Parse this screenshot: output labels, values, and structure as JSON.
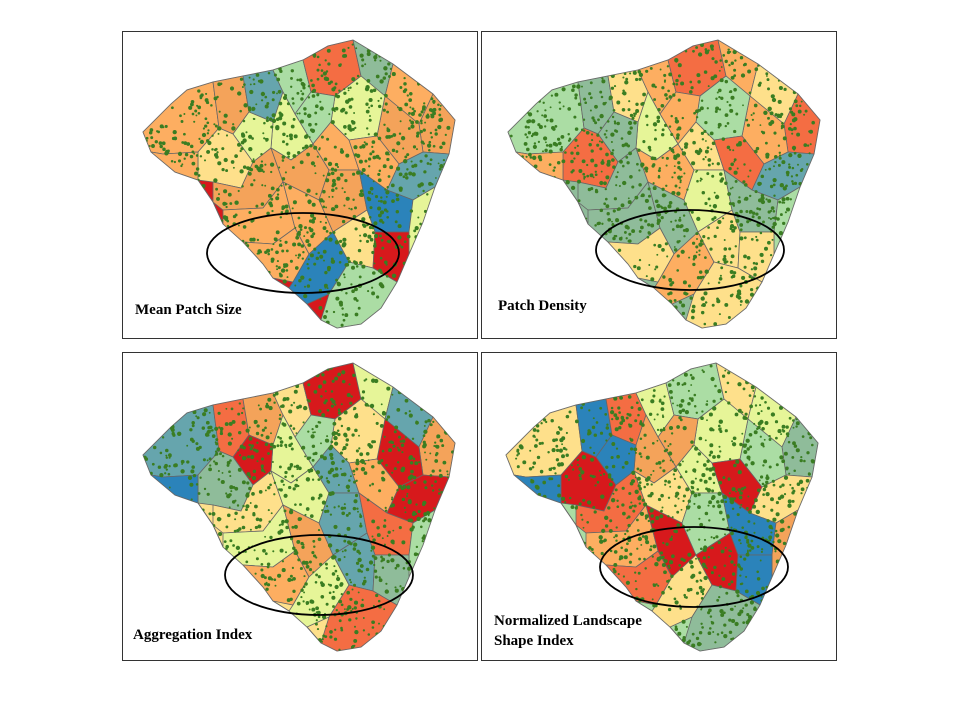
{
  "panels": [
    {
      "id": "mean-patch-size",
      "title": "Mean Patch Size",
      "colors": [
        "#d7191c",
        "#f46d43",
        "#fdae61",
        "#fee08b",
        "#e6f598",
        "#abdda4",
        "#66a5ad",
        "#2b83ba",
        "#8fbc9a",
        "#f4a35a"
      ]
    },
    {
      "id": "patch-density",
      "title": "Patch Density",
      "colors": [
        "#8fbc9a",
        "#66a5ad",
        "#abdda4",
        "#fdae61",
        "#f46d43",
        "#2b83ba",
        "#e6f598",
        "#d7191c",
        "#fee08b",
        "#66a5ad"
      ]
    },
    {
      "id": "aggregation-index",
      "title": "Aggregation Index",
      "colors": [
        "#fee08b",
        "#abdda4",
        "#f46d43",
        "#66a5ad",
        "#2b83ba",
        "#fdae61",
        "#8fbc9a",
        "#d7191c",
        "#e6f598",
        "#f4a35a"
      ]
    },
    {
      "id": "normalized-landscape-shape-index",
      "title": "Normalized Landscape\nShape Index",
      "colors": [
        "#abdda4",
        "#f46d43",
        "#66a5ad",
        "#fee08b",
        "#2b83ba",
        "#8fbc9a",
        "#fdae61",
        "#d7191c",
        "#e6f598",
        "#f4a35a"
      ]
    }
  ],
  "patch_color": "#3a7d22",
  "boundary_color": "#666666",
  "ellipse_color": "#000000"
}
